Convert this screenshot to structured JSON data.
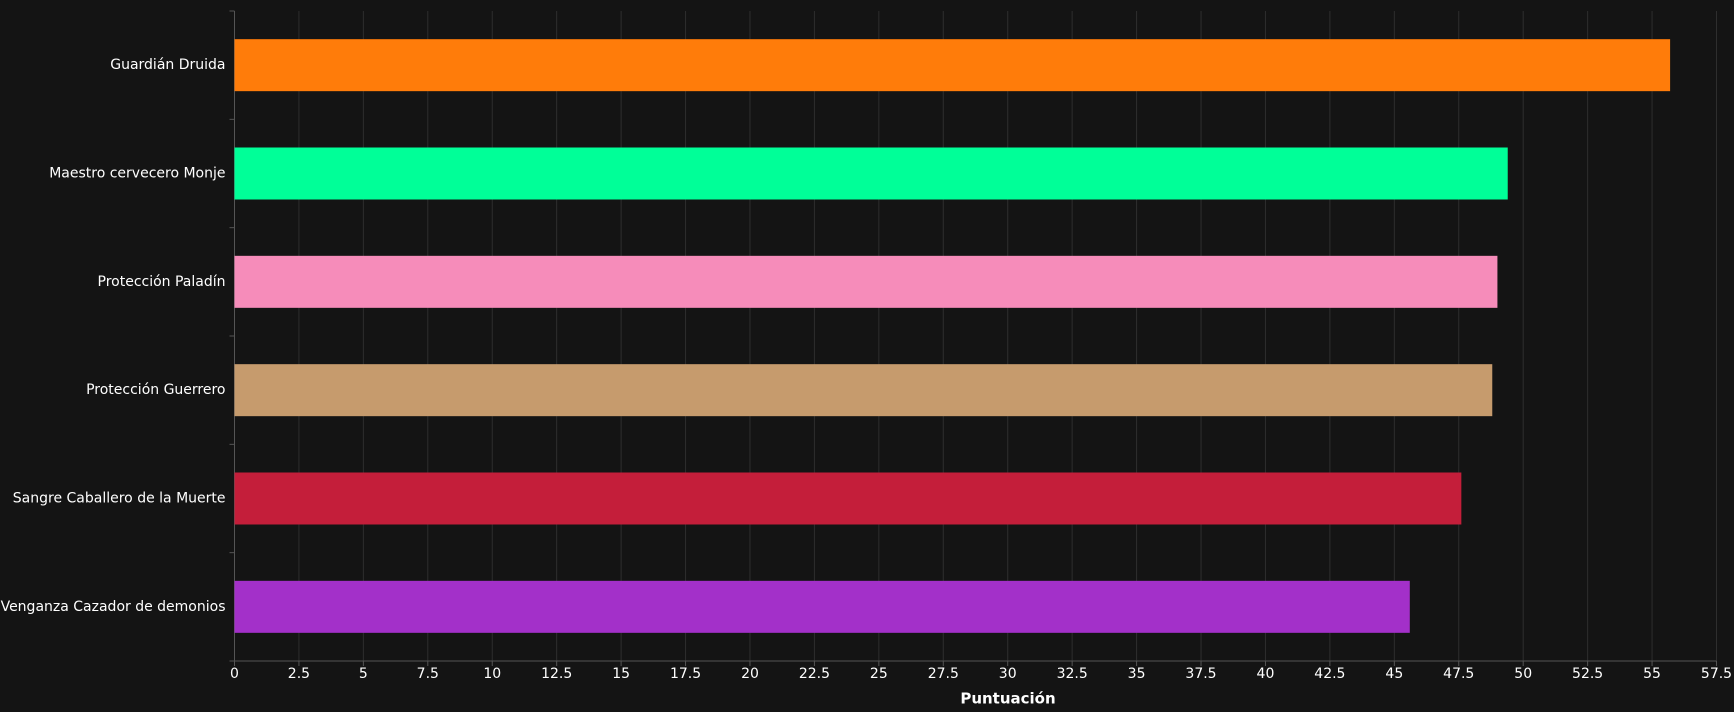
{
  "chart_data": {
    "type": "bar",
    "orientation": "horizontal",
    "categories": [
      "Guardián Druida",
      "Maestro cervecero Monje",
      "Protección Paladín",
      "Protección Guerrero",
      "Sangre Caballero de la Muerte",
      "Venganza Cazador de demonios"
    ],
    "values": [
      55.7,
      49.4,
      49.0,
      48.8,
      47.6,
      45.6
    ],
    "colors": [
      "#ff7c0a",
      "#00ff98",
      "#f68cba",
      "#c69b6d",
      "#c41e3a",
      "#a330c9"
    ],
    "x_label": "Puntuación",
    "xlim": [
      0,
      57.5
    ],
    "xticks": [
      0,
      2.5,
      5,
      7.5,
      10,
      12.5,
      15,
      17.5,
      20,
      22.5,
      25,
      27.5,
      30,
      32.5,
      35,
      37.5,
      40,
      42.5,
      45,
      47.5,
      50,
      52.5,
      55,
      57.5
    ],
    "grid": true
  }
}
